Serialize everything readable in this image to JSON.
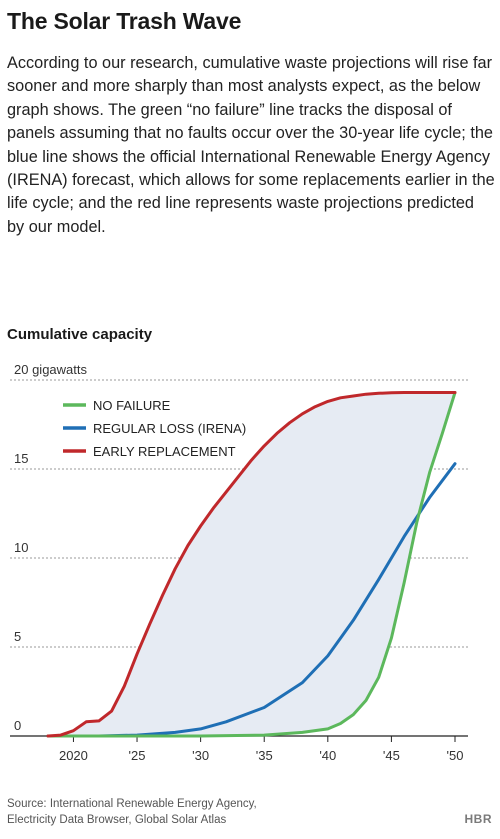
{
  "header": {
    "title": "The Solar Trash Wave",
    "intro": "According to our research, cumulative waste projections will rise far sooner and more sharply than most analysts expect, as the below graph shows. The green “no failure” line tracks the disposal of panels assuming that no faults occur over the 30-year life cycle; the blue line shows the official International Renewable Energy Agency (IRENA) forecast, which allows for some replacements earlier in the life cycle; and the red line represents waste projections predicted by our model."
  },
  "footer": {
    "source_line1": "Source: International Renewable Energy Agency,",
    "source_line2": "Electricity Data Browser, Global Solar Atlas",
    "brand": "HBR"
  },
  "chart_data": {
    "type": "line",
    "title": "Cumulative capacity",
    "xlabel": "",
    "ylabel": "",
    "xlim": [
      2018,
      2050
    ],
    "ylim": [
      0,
      20
    ],
    "x_ticks": [
      2020,
      2025,
      2030,
      2035,
      2040,
      2045,
      2050
    ],
    "x_tick_labels": [
      "2020",
      "'25",
      "'30",
      "'35",
      "'40",
      "'45",
      "'50"
    ],
    "y_ticks": [
      0,
      5,
      10,
      15,
      20
    ],
    "y_tick_labels": [
      "0",
      "5",
      "10",
      "15",
      "20 gigawatts"
    ],
    "grid": "horizontal-dashed",
    "legend_position": "top-left",
    "shaded_area_color": "#e6ebf3",
    "series": [
      {
        "name": "NO FAILURE",
        "color": "#5cb85c",
        "x": [
          2018,
          2030,
          2035,
          2038,
          2040,
          2041,
          2042,
          2043,
          2044,
          2045,
          2046,
          2047,
          2048,
          2049,
          2050
        ],
        "values": [
          0,
          0,
          0.05,
          0.2,
          0.4,
          0.7,
          1.2,
          2.0,
          3.3,
          5.5,
          8.6,
          12.0,
          14.8,
          17.0,
          19.3
        ]
      },
      {
        "name": "REGULAR LOSS (IRENA)",
        "color": "#1f6fb5",
        "x": [
          2018,
          2022,
          2025,
          2028,
          2030,
          2032,
          2035,
          2038,
          2040,
          2042,
          2044,
          2046,
          2048,
          2050
        ],
        "values": [
          0,
          0,
          0.05,
          0.2,
          0.4,
          0.8,
          1.6,
          3.0,
          4.5,
          6.5,
          8.8,
          11.2,
          13.4,
          15.3
        ]
      },
      {
        "name": "EARLY REPLACEMENT",
        "color": "#c0282b",
        "x": [
          2018,
          2019,
          2020,
          2021,
          2022,
          2023,
          2024,
          2025,
          2026,
          2027,
          2028,
          2029,
          2030,
          2031,
          2032,
          2033,
          2034,
          2035,
          2036,
          2037,
          2038,
          2039,
          2040,
          2041,
          2042,
          2043,
          2044,
          2045,
          2046,
          2047,
          2048,
          2049,
          2050
        ],
        "values": [
          0,
          0.05,
          0.3,
          0.8,
          0.85,
          1.4,
          2.8,
          4.6,
          6.3,
          7.9,
          9.4,
          10.7,
          11.8,
          12.8,
          13.7,
          14.6,
          15.5,
          16.3,
          17.0,
          17.6,
          18.1,
          18.5,
          18.8,
          19.0,
          19.1,
          19.2,
          19.25,
          19.28,
          19.3,
          19.3,
          19.3,
          19.3,
          19.3
        ]
      }
    ]
  }
}
